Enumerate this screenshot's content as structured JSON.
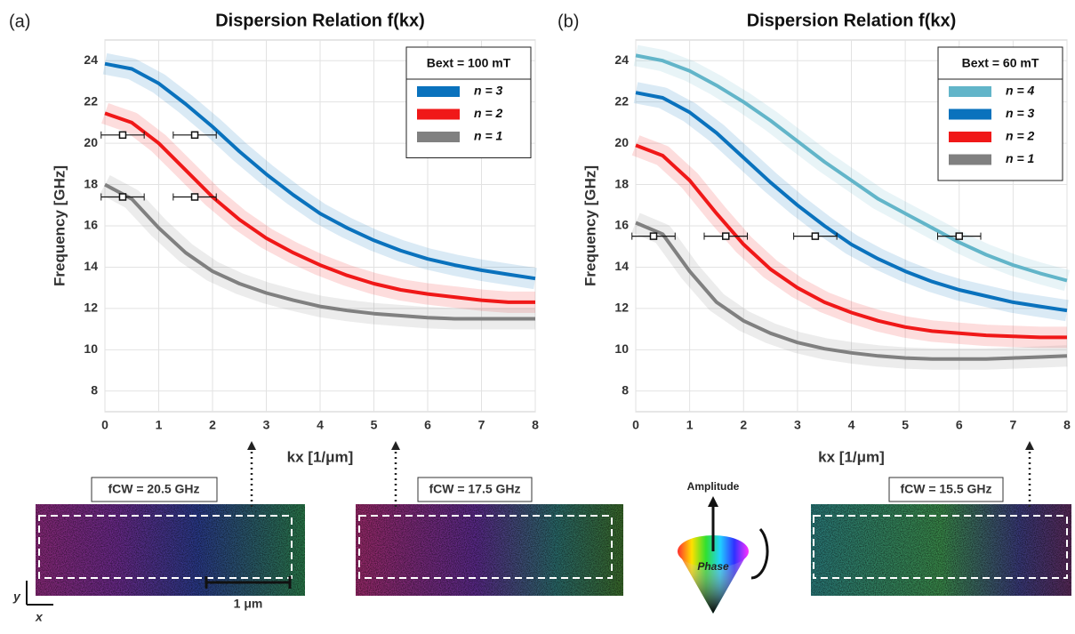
{
  "chart_data": [
    {
      "type": "line",
      "panel": "(a)",
      "title": "Dispersion Relation f(kx)",
      "xlabel": "kx [1/μm]",
      "ylabel": "Frequency [GHz]",
      "legend_title": "Bext = 100 mT",
      "legend": "upper right",
      "grid": true,
      "xlim": [
        0,
        8
      ],
      "xticks": [
        0,
        1,
        2,
        3,
        4,
        5,
        6,
        7,
        8
      ],
      "ylim": [
        7,
        25
      ],
      "yticks": [
        8,
        10,
        12,
        14,
        16,
        18,
        20,
        22,
        24
      ],
      "x": [
        0,
        0.5,
        1,
        1.5,
        2,
        2.5,
        3,
        3.5,
        4,
        4.5,
        5,
        5.5,
        6,
        6.5,
        7,
        7.5,
        8
      ],
      "series": [
        {
          "name": "n = 3",
          "color": "#0a72bd",
          "values": [
            23.85,
            23.6,
            22.9,
            21.9,
            20.8,
            19.6,
            18.5,
            17.5,
            16.6,
            15.9,
            15.3,
            14.8,
            14.4,
            14.1,
            13.85,
            13.65,
            13.45
          ]
        },
        {
          "name": "n = 2",
          "color": "#f01818",
          "values": [
            21.45,
            21.0,
            20.0,
            18.7,
            17.4,
            16.3,
            15.4,
            14.7,
            14.1,
            13.6,
            13.2,
            12.9,
            12.7,
            12.55,
            12.4,
            12.3,
            12.3
          ]
        },
        {
          "name": "n = 1",
          "color": "#808080",
          "values": [
            18.0,
            17.3,
            15.9,
            14.7,
            13.8,
            13.2,
            12.75,
            12.4,
            12.1,
            11.9,
            11.75,
            11.65,
            11.55,
            11.5,
            11.5,
            11.5,
            11.5
          ]
        }
      ],
      "points": {
        "x": [
          0.33,
          1.67,
          0.33,
          1.67
        ],
        "y": [
          20.4,
          20.4,
          17.4,
          17.4
        ],
        "xerr": [
          0.4,
          0.4,
          0.4,
          0.4
        ]
      }
    },
    {
      "type": "line",
      "panel": "(b)",
      "title": "Dispersion Relation f(kx)",
      "xlabel": "kx [1/μm]",
      "ylabel": "Frequency [GHz]",
      "legend_title": "Bext = 60 mT",
      "legend": "upper right",
      "grid": true,
      "xlim": [
        0,
        8
      ],
      "xticks": [
        0,
        1,
        2,
        3,
        4,
        5,
        6,
        7,
        8
      ],
      "ylim": [
        7,
        25
      ],
      "yticks": [
        8,
        10,
        12,
        14,
        16,
        18,
        20,
        22,
        24
      ],
      "x": [
        0,
        0.5,
        1,
        1.5,
        2,
        2.5,
        3,
        3.5,
        4,
        4.5,
        5,
        5.5,
        6,
        6.5,
        7,
        7.5,
        8
      ],
      "series": [
        {
          "name": "n = 4",
          "color": "#62b5c9",
          "values": [
            24.25,
            24.0,
            23.5,
            22.8,
            22.0,
            21.1,
            20.1,
            19.1,
            18.2,
            17.3,
            16.6,
            15.9,
            15.2,
            14.6,
            14.1,
            13.7,
            13.35
          ]
        },
        {
          "name": "n = 3",
          "color": "#0a72bd",
          "values": [
            22.45,
            22.2,
            21.5,
            20.5,
            19.3,
            18.1,
            17.0,
            16.0,
            15.1,
            14.4,
            13.8,
            13.3,
            12.9,
            12.6,
            12.3,
            12.1,
            11.9
          ]
        },
        {
          "name": "n = 2",
          "color": "#f01818",
          "values": [
            19.9,
            19.4,
            18.2,
            16.6,
            15.1,
            13.9,
            13.0,
            12.3,
            11.8,
            11.4,
            11.1,
            10.9,
            10.8,
            10.7,
            10.65,
            10.6,
            10.6
          ]
        },
        {
          "name": "n = 1",
          "color": "#808080",
          "values": [
            16.15,
            15.6,
            13.8,
            12.3,
            11.4,
            10.8,
            10.35,
            10.05,
            9.85,
            9.7,
            9.6,
            9.55,
            9.55,
            9.55,
            9.6,
            9.65,
            9.7
          ]
        }
      ],
      "points": {
        "x": [
          0.33,
          1.67,
          3.33,
          6.0
        ],
        "y": [
          15.5,
          15.5,
          15.5,
          15.5
        ],
        "xerr": [
          0.4,
          0.4,
          0.4,
          0.4
        ]
      }
    }
  ],
  "images": [
    {
      "label": "fCW = 20.5 GHz"
    },
    {
      "label": "fCW = 17.5 GHz"
    },
    {
      "label": "fCW = 15.5 GHz"
    }
  ],
  "cone": {
    "amplitude": "Amplitude",
    "phase": "Phase"
  },
  "scale_bar": "1 μm",
  "axes": {
    "y": "y",
    "x": "x"
  }
}
